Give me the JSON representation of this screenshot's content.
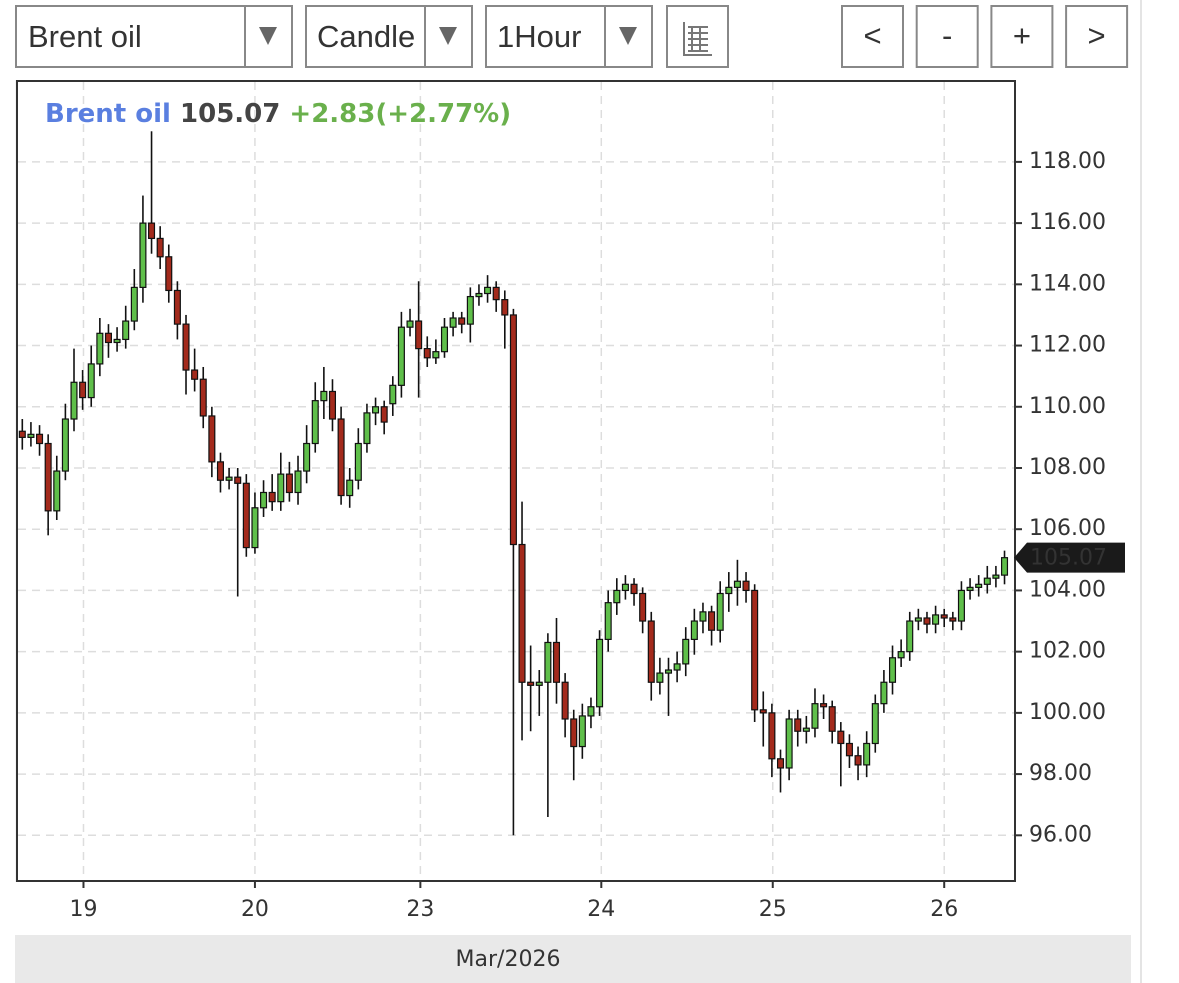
{
  "controls": {
    "instrument": "Brent oil",
    "chart_type": "Candle",
    "interval": "1Hour",
    "buttons": [
      "<",
      "-",
      "+",
      ">"
    ]
  },
  "chart_data": {
    "type": "candlestick",
    "name": "Brent oil",
    "change": "+2.83(+2.77%)",
    "up_color": "#5fbf4a",
    "down_color": "#a32a1c",
    "open": [
      109.2,
      109.0,
      109.1,
      108.8,
      106.6,
      107.9,
      109.6,
      110.8,
      110.3,
      111.4,
      112.4,
      112.1,
      112.2,
      112.8,
      113.9,
      116.0,
      115.5,
      114.9,
      113.8,
      112.7,
      111.2,
      110.9,
      109.7,
      108.2,
      107.6,
      107.7,
      107.5,
      105.4,
      106.7,
      107.2,
      106.9,
      107.8,
      107.2,
      107.9,
      108.8,
      110.2,
      110.5,
      109.6,
      107.1,
      107.6,
      108.8,
      109.8,
      110.0,
      110.1,
      110.7,
      112.6,
      112.8,
      111.9,
      111.6,
      111.8,
      112.6,
      112.9,
      112.7,
      113.6,
      113.7,
      113.9,
      113.5,
      113.0,
      105.5,
      101.0,
      100.9,
      101.0,
      102.3,
      101.0,
      99.8,
      98.9,
      99.9,
      100.2,
      102.4,
      103.6,
      104.0,
      104.2,
      103.9,
      103.0,
      101.0,
      101.3,
      101.4,
      101.6,
      102.4,
      103.0,
      103.3,
      102.7,
      103.9,
      104.1,
      104.3,
      104.0,
      100.1,
      100.0,
      98.5,
      98.2,
      99.8,
      99.4,
      99.5,
      100.3,
      100.2,
      99.4,
      99.0,
      98.6,
      98.3,
      99.0,
      100.3,
      101.0,
      101.8,
      102.0,
      103.0,
      103.1,
      102.9,
      103.2,
      103.1,
      103.0,
      104.0,
      104.1,
      104.2,
      104.4,
      104.5
    ],
    "high": [
      109.6,
      109.5,
      109.4,
      109.1,
      108.4,
      110.1,
      111.9,
      111.2,
      112.0,
      112.9,
      112.7,
      112.6,
      113.3,
      114.5,
      116.9,
      119.0,
      115.9,
      115.3,
      114.1,
      113.0,
      111.9,
      111.3,
      110.0,
      108.5,
      108.0,
      108.0,
      107.8,
      107.2,
      107.6,
      107.8,
      108.5,
      108.2,
      108.4,
      109.4,
      110.8,
      111.3,
      110.9,
      110.0,
      108.0,
      109.3,
      110.1,
      110.3,
      110.2,
      111.0,
      113.1,
      113.2,
      114.1,
      112.3,
      112.2,
      112.9,
      113.1,
      113.1,
      113.9,
      114.0,
      114.3,
      114.1,
      113.8,
      113.2,
      106.9,
      102.2,
      101.4,
      102.6,
      103.1,
      101.3,
      100.1,
      100.3,
      100.5,
      102.7,
      104.0,
      104.4,
      104.5,
      104.4,
      104.1,
      103.3,
      101.8,
      101.8,
      102.0,
      102.8,
      103.4,
      103.6,
      103.5,
      104.3,
      104.6,
      105.0,
      104.6,
      104.2,
      100.7,
      100.3,
      98.8,
      100.1,
      100.1,
      99.9,
      100.8,
      100.6,
      100.4,
      99.7,
      99.3,
      98.9,
      99.4,
      100.6,
      101.4,
      102.2,
      102.4,
      103.3,
      103.4,
      103.3,
      103.5,
      103.4,
      103.3,
      104.3,
      104.4,
      104.5,
      104.8,
      104.8,
      105.3
    ],
    "low": [
      108.6,
      108.7,
      108.4,
      105.8,
      106.3,
      107.6,
      109.2,
      109.9,
      110.0,
      111.0,
      111.6,
      111.8,
      111.9,
      112.5,
      113.4,
      115.0,
      114.5,
      113.4,
      112.2,
      110.4,
      110.5,
      109.3,
      107.7,
      107.2,
      107.3,
      103.8,
      105.1,
      105.2,
      106.4,
      106.6,
      106.6,
      106.9,
      106.8,
      107.5,
      108.5,
      109.6,
      109.2,
      106.8,
      106.7,
      107.3,
      108.5,
      109.4,
      109.1,
      109.7,
      110.3,
      112.3,
      110.3,
      111.3,
      111.4,
      111.6,
      112.3,
      112.4,
      112.1,
      113.3,
      113.4,
      113.1,
      111.9,
      96.0,
      99.1,
      99.4,
      99.9,
      96.6,
      100.3,
      99.2,
      97.8,
      98.5,
      99.5,
      99.9,
      102.0,
      103.2,
      103.7,
      103.5,
      102.6,
      100.4,
      100.6,
      99.9,
      101.0,
      101.2,
      101.9,
      102.6,
      102.2,
      102.3,
      103.3,
      103.5,
      103.6,
      99.7,
      98.9,
      97.9,
      97.4,
      97.8,
      98.9,
      99.0,
      99.2,
      99.8,
      99.0,
      97.6,
      98.2,
      97.8,
      97.9,
      98.7,
      100.0,
      100.6,
      101.5,
      101.7,
      102.7,
      102.6,
      102.6,
      102.8,
      102.7,
      102.7,
      103.7,
      103.8,
      103.9,
      104.1,
      104.2
    ],
    "close": [
      109.0,
      109.1,
      108.8,
      106.6,
      107.9,
      109.6,
      110.8,
      110.3,
      111.4,
      112.4,
      112.1,
      112.2,
      112.8,
      113.9,
      116.0,
      115.5,
      114.9,
      113.8,
      112.7,
      111.2,
      110.9,
      109.7,
      108.2,
      107.6,
      107.7,
      107.5,
      105.4,
      106.7,
      107.2,
      106.9,
      107.8,
      107.2,
      107.9,
      108.8,
      110.2,
      110.5,
      109.6,
      107.1,
      107.6,
      108.8,
      109.8,
      110.0,
      109.5,
      110.7,
      112.6,
      112.8,
      111.9,
      111.6,
      111.8,
      112.6,
      112.9,
      112.7,
      113.6,
      113.7,
      113.9,
      113.5,
      113.0,
      105.5,
      101.0,
      100.9,
      101.0,
      102.3,
      101.0,
      99.8,
      98.9,
      99.9,
      100.2,
      102.4,
      103.6,
      104.0,
      104.2,
      103.9,
      103.0,
      101.0,
      101.3,
      101.4,
      101.6,
      102.4,
      103.0,
      103.3,
      102.7,
      103.9,
      104.1,
      104.3,
      104.0,
      100.1,
      100.0,
      98.5,
      98.2,
      99.8,
      99.4,
      99.5,
      100.3,
      100.2,
      99.4,
      99.0,
      98.6,
      98.3,
      99.0,
      100.3,
      101.0,
      101.8,
      102.0,
      103.0,
      103.1,
      102.9,
      103.2,
      103.1,
      103.0,
      104.0,
      104.1,
      104.2,
      104.4,
      104.5,
      105.07
    ],
    "xlim": [
      -0.5,
      115.1
    ],
    "xticks": [
      {
        "value": 7.1,
        "label": "19"
      },
      {
        "value": 27,
        "label": "20"
      },
      {
        "value": 46.2,
        "label": "23"
      },
      {
        "value": 67.2,
        "label": "24"
      },
      {
        "value": 87.1,
        "label": "25"
      },
      {
        "value": 107,
        "label": "26"
      }
    ],
    "xlabel": "Mar/2026",
    "ylim": [
      94.54,
      120.61
    ],
    "yticks": [
      {
        "value": 96,
        "label": "96.00"
      },
      {
        "value": 98,
        "label": "98.00"
      },
      {
        "value": 100,
        "label": "100.00"
      },
      {
        "value": 102,
        "label": "102.00"
      },
      {
        "value": 104,
        "label": "104.00"
      },
      {
        "value": 106,
        "label": "106.00"
      },
      {
        "value": 108,
        "label": "108.00"
      },
      {
        "value": 110,
        "label": "110.00"
      },
      {
        "value": 112,
        "label": "112.00"
      },
      {
        "value": 114,
        "label": "114.00"
      },
      {
        "value": 116,
        "label": "116.00"
      },
      {
        "value": 118,
        "label": "118.00"
      }
    ],
    "grid": true
  }
}
